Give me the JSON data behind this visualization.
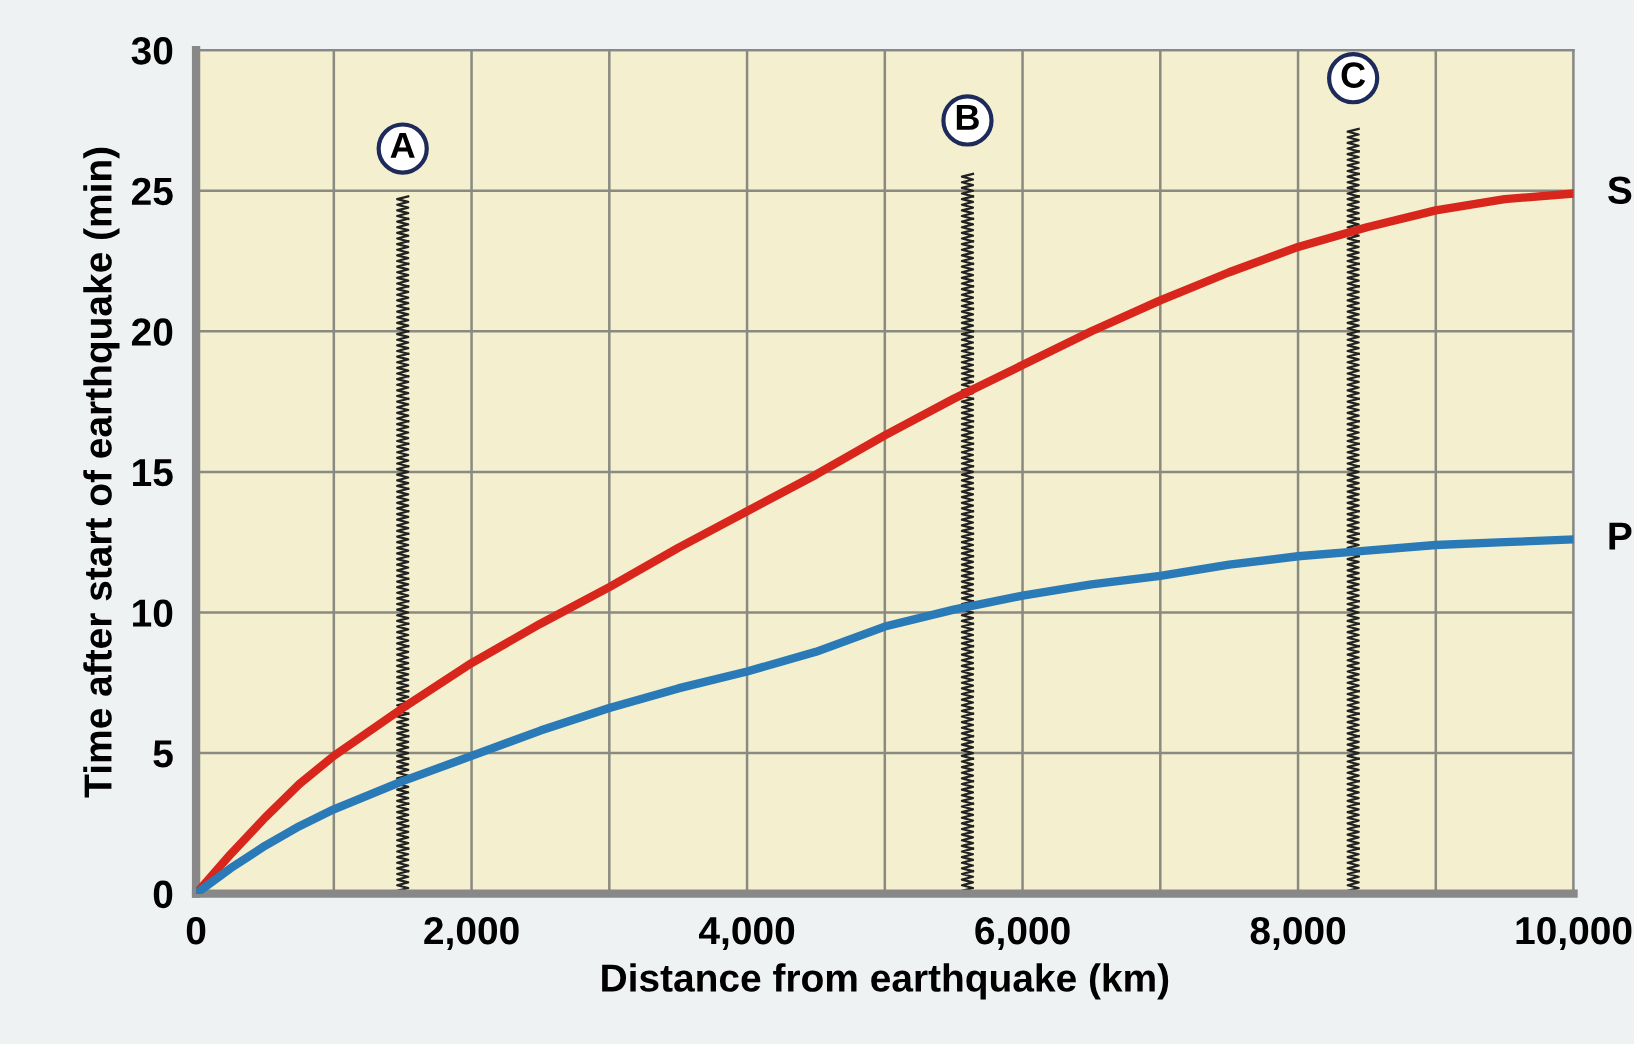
{
  "chart_data": {
    "type": "line",
    "xlabel": "Distance from earthquake (km)",
    "ylabel": "Time after start of earthquake (min)",
    "series": [
      {
        "name": "S",
        "color": "#d9261c",
        "x": [
          0,
          250,
          500,
          750,
          1000,
          1500,
          2000,
          2500,
          3000,
          3500,
          4000,
          4500,
          5000,
          5500,
          6000,
          6500,
          7000,
          7500,
          8000,
          8500,
          9000,
          9500,
          10000
        ],
        "values": [
          0,
          1.4,
          2.7,
          3.9,
          4.9,
          6.6,
          8.2,
          9.6,
          10.9,
          12.3,
          13.6,
          14.9,
          16.3,
          17.6,
          18.8,
          20.0,
          21.1,
          22.1,
          23.0,
          23.7,
          24.3,
          24.7,
          24.9
        ]
      },
      {
        "name": "P",
        "color": "#2a7ab8",
        "x": [
          0,
          250,
          500,
          750,
          1000,
          1500,
          2000,
          2500,
          3000,
          3500,
          4000,
          4500,
          5000,
          5500,
          6000,
          6500,
          7000,
          7500,
          8000,
          8500,
          9000,
          9500,
          10000
        ],
        "values": [
          0,
          0.9,
          1.7,
          2.4,
          3.0,
          4.0,
          4.9,
          5.8,
          6.6,
          7.3,
          7.9,
          8.6,
          9.5,
          10.1,
          10.6,
          11.0,
          11.3,
          11.7,
          12.0,
          12.2,
          12.4,
          12.5,
          12.6
        ]
      }
    ],
    "annotations": [
      {
        "text": "A",
        "x": 1500,
        "y": 26.5
      },
      {
        "text": "B",
        "x": 5600,
        "y": 27.5
      },
      {
        "text": "C",
        "x": 8400,
        "y": 29
      }
    ],
    "xlim": [
      0,
      10000
    ],
    "ylim": [
      0,
      30
    ],
    "xticks": [
      0,
      {
        "value": 1000,
        "label": null
      },
      {
        "value": 2000,
        "label": "2,000"
      },
      {
        "value": 3000,
        "label": null
      },
      {
        "value": 4000,
        "label": "4,000"
      },
      {
        "value": 5000,
        "label": null
      },
      {
        "value": 6000,
        "label": "6,000"
      },
      {
        "value": 7000,
        "label": null
      },
      {
        "value": 8000,
        "label": "8,000"
      },
      {
        "value": 9000,
        "label": null
      },
      {
        "value": 10000,
        "label": "10,000"
      }
    ],
    "yticks": [
      0,
      5,
      10,
      15,
      20,
      25,
      30
    ],
    "grid": true,
    "legend": false,
    "marker": "none",
    "line_style": "solid"
  }
}
